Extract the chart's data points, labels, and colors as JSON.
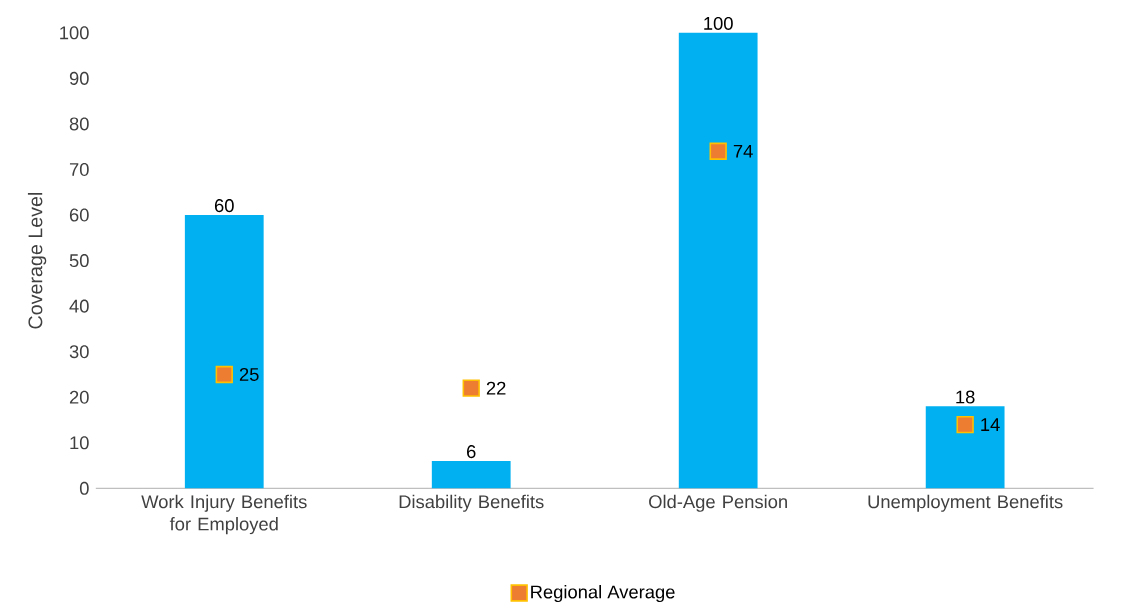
{
  "chart_data": {
    "type": "bar",
    "ylabel": "Coverage Level",
    "categories": [
      "Work Injury Benefits for Employed",
      "Disability Benefits",
      "Old-Age Pension",
      "Unemployment Benefits"
    ],
    "series": [
      {
        "color": "#00b0f0",
        "values": [
          60,
          6,
          100,
          18
        ]
      },
      {
        "name": "Regional Average",
        "type": "scatter",
        "color": "#ed7d31",
        "values": [
          25,
          22,
          74,
          14
        ]
      }
    ],
    "ylim": [
      0,
      100
    ],
    "yticks": [
      0,
      10,
      20,
      30,
      40,
      50,
      60,
      70,
      80,
      90,
      100
    ],
    "data_labels": true,
    "legend": "bottom",
    "marker": "square",
    "grid": false
  }
}
